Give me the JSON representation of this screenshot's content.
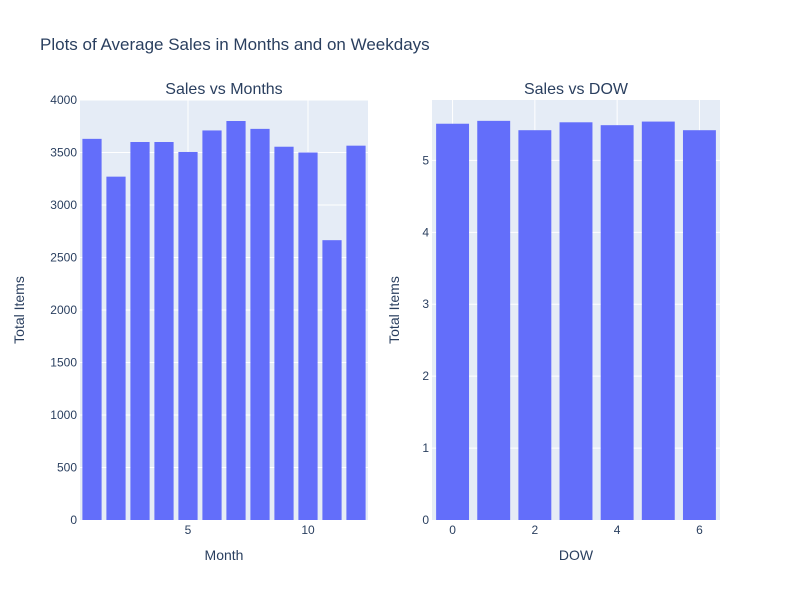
{
  "figure_title": "Plots of Average Sales in Months and on Weekdays",
  "chart_data": [
    {
      "type": "bar",
      "title": "Sales vs Months",
      "xlabel": "Month",
      "ylabel": "Total Items",
      "x": [
        1,
        2,
        3,
        4,
        5,
        6,
        7,
        8,
        9,
        10,
        11,
        12
      ],
      "values": [
        3630,
        3270,
        3600,
        3600,
        3505,
        3710,
        3800,
        3725,
        3555,
        3500,
        2665,
        3565
      ],
      "xlim": [
        0.5,
        12.5
      ],
      "ylim": [
        0,
        4000
      ],
      "xticks": [
        5,
        10
      ],
      "yticks": [
        0,
        500,
        1000,
        1500,
        2000,
        2500,
        3000,
        3500,
        4000
      ],
      "bar_color": "#636efa"
    },
    {
      "type": "bar",
      "title": "Sales vs DOW",
      "xlabel": "DOW",
      "ylabel": "Total Items",
      "x": [
        0,
        1,
        2,
        3,
        4,
        5,
        6
      ],
      "values": [
        5.51,
        5.55,
        5.42,
        5.53,
        5.49,
        5.54,
        5.42
      ],
      "xlim": [
        -0.5,
        6.5
      ],
      "ylim": [
        0,
        5.84
      ],
      "xticks": [
        0,
        2,
        4,
        6
      ],
      "yticks": [
        0,
        1,
        2,
        3,
        4,
        5
      ],
      "bar_color": "#636efa"
    }
  ]
}
